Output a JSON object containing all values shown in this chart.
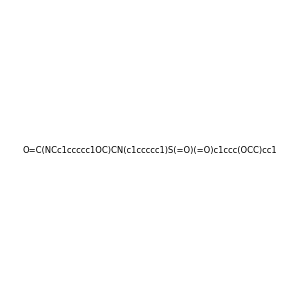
{
  "smiles": "O=C(NCc1ccccc1OC)CN(c1ccccc1)S(=O)(=O)c1ccc(OCC)cc1",
  "title": "",
  "bg_color": "#f0f0f0",
  "fig_width": 3.0,
  "fig_height": 3.0,
  "dpi": 100
}
